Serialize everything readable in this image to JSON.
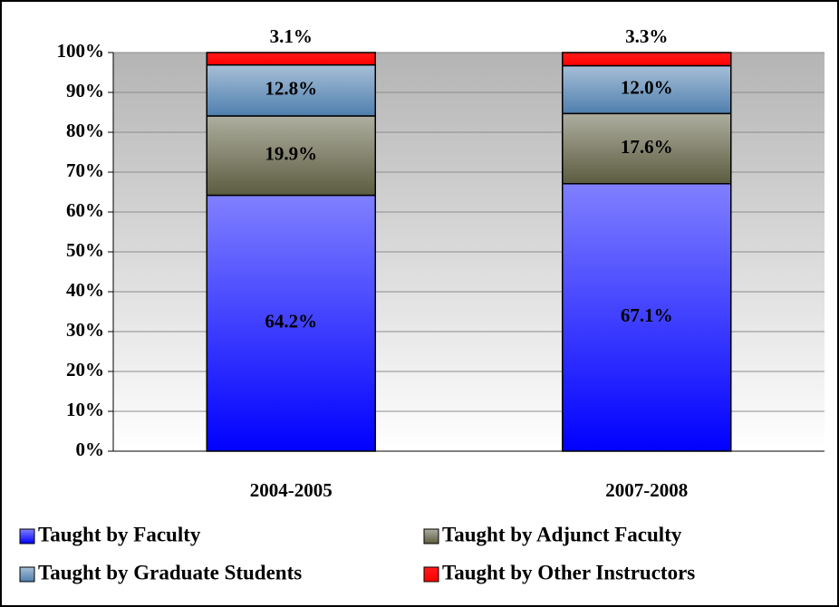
{
  "chart_data": {
    "type": "stacked_bar",
    "categories": [
      "2004-2005",
      "2007-2008"
    ],
    "series": [
      {
        "name": "Taught by Faculty",
        "color": "#0000ff",
        "values": [
          64.2,
          67.1
        ],
        "value_labels": [
          "64.2%",
          "67.1%"
        ]
      },
      {
        "name": "Taught by Adjunct Faculty",
        "color": "#5c5c40",
        "values": [
          19.9,
          17.6
        ],
        "value_labels": [
          "19.9%",
          "17.6%"
        ]
      },
      {
        "name": "Taught by Graduate Students",
        "color": "#4f7fae",
        "values": [
          12.8,
          12.0
        ],
        "value_labels": [
          "12.8%",
          "12.0%"
        ]
      },
      {
        "name": "Taught by Other Instructors",
        "color": "#ff0000",
        "values": [
          3.1,
          3.3
        ],
        "value_labels": [
          "3.1%",
          "3.3%"
        ]
      }
    ],
    "ylim": [
      0,
      100
    ],
    "yticks": [
      {
        "value": 0,
        "label": "0%"
      },
      {
        "value": 10,
        "label": "10%"
      },
      {
        "value": 20,
        "label": "20%"
      },
      {
        "value": 30,
        "label": "30%"
      },
      {
        "value": 40,
        "label": "40%"
      },
      {
        "value": 50,
        "label": "50%"
      },
      {
        "value": 60,
        "label": "60%"
      },
      {
        "value": 70,
        "label": "70%"
      },
      {
        "value": 80,
        "label": "80%"
      },
      {
        "value": 90,
        "label": "90%"
      },
      {
        "value": 100,
        "label": "100%"
      }
    ],
    "grid": true,
    "legend": "bottom"
  }
}
